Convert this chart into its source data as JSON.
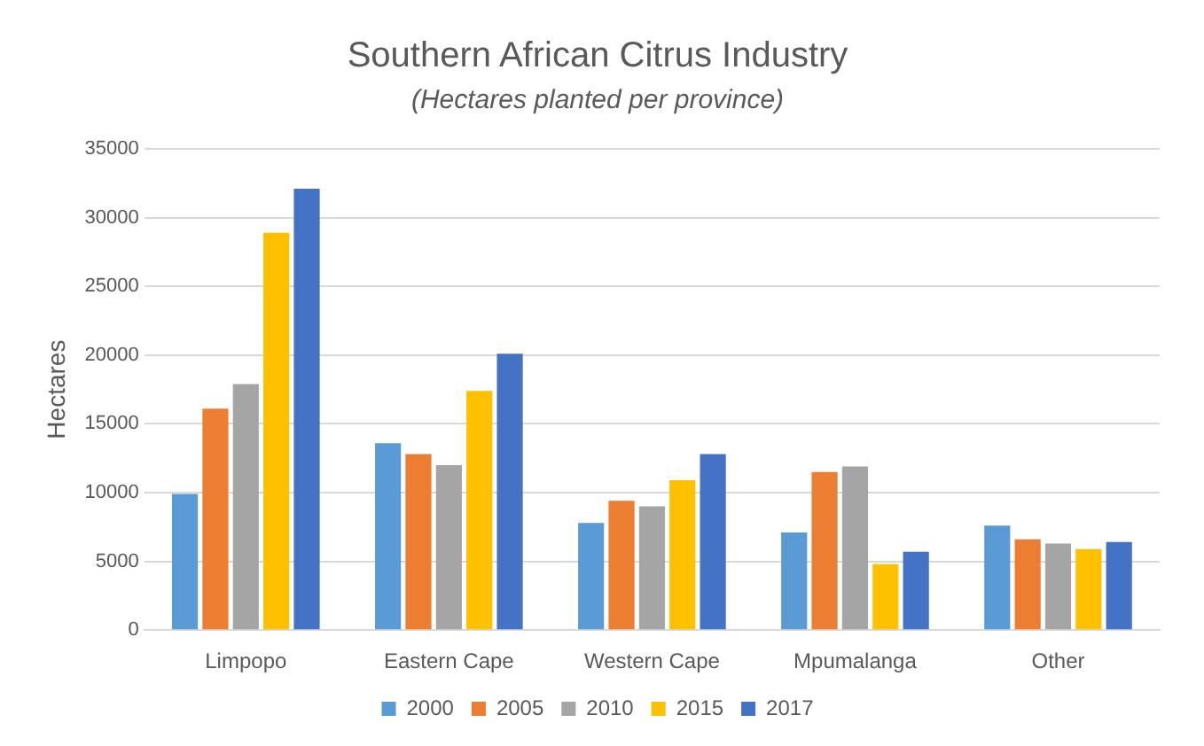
{
  "chart_data": {
    "type": "bar",
    "title": "Southern African Citrus Industry",
    "subtitle": "(Hectares planted per province)",
    "ylabel": "Hectares",
    "categories": [
      "Limpopo",
      "Eastern Cape",
      "Western Cape",
      "Mpumalanga",
      "Other"
    ],
    "series": [
      {
        "name": "2000",
        "color": "#5b9bd5",
        "values": [
          9900,
          13600,
          7800,
          7100,
          7600
        ]
      },
      {
        "name": "2005",
        "color": "#ed7d31",
        "values": [
          16100,
          12800,
          9400,
          11500,
          6600
        ]
      },
      {
        "name": "2010",
        "color": "#a5a5a5",
        "values": [
          17900,
          12000,
          9000,
          11900,
          6300
        ]
      },
      {
        "name": "2015",
        "color": "#ffc000",
        "values": [
          28900,
          17400,
          10900,
          4800,
          5900
        ]
      },
      {
        "name": "2017",
        "color": "#4472c4",
        "values": [
          32100,
          20100,
          12800,
          5700,
          6400
        ]
      }
    ],
    "ylim": [
      0,
      35000
    ],
    "yticks": [
      0,
      5000,
      10000,
      15000,
      20000,
      25000,
      30000,
      35000
    ],
    "grid": "y",
    "legend": "bottom"
  }
}
